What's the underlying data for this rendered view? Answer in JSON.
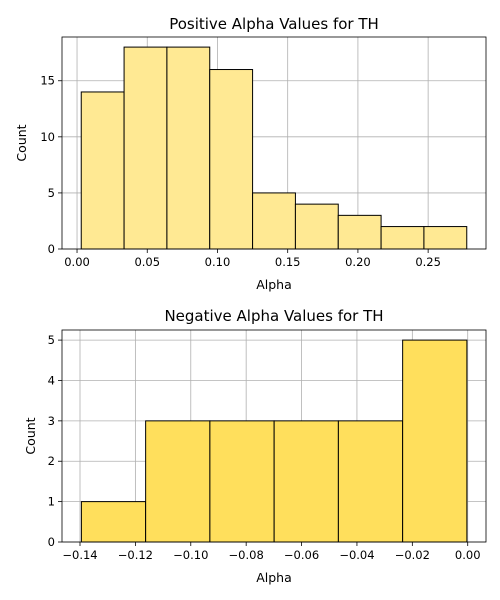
{
  "chart_data": [
    {
      "type": "bar",
      "title": "Positive Alpha Values for TH",
      "xlabel": "Alpha",
      "ylabel": "Count",
      "bins": [
        {
          "x0": 0.003,
          "x1": 0.0335,
          "count": 14
        },
        {
          "x0": 0.0335,
          "x1": 0.064,
          "count": 18
        },
        {
          "x0": 0.064,
          "x1": 0.0945,
          "count": 18
        },
        {
          "x0": 0.0945,
          "x1": 0.125,
          "count": 16
        },
        {
          "x0": 0.125,
          "x1": 0.1555,
          "count": 5
        },
        {
          "x0": 0.1555,
          "x1": 0.186,
          "count": 4
        },
        {
          "x0": 0.186,
          "x1": 0.2165,
          "count": 3
        },
        {
          "x0": 0.2165,
          "x1": 0.247,
          "count": 2
        },
        {
          "x0": 0.247,
          "x1": 0.2775,
          "count": 2
        }
      ],
      "xlim": [
        -0.0107,
        0.2912
      ],
      "ylim": [
        0,
        18.9
      ],
      "xticks": [
        {
          "value": 0.0,
          "label": "0.00"
        },
        {
          "value": 0.05,
          "label": "0.05"
        },
        {
          "value": 0.1,
          "label": "0.10"
        },
        {
          "value": 0.15,
          "label": "0.15"
        },
        {
          "value": 0.2,
          "label": "0.20"
        },
        {
          "value": 0.25,
          "label": "0.25"
        }
      ],
      "yticks": [
        {
          "value": 0,
          "label": "0"
        },
        {
          "value": 5,
          "label": "5"
        },
        {
          "value": 10,
          "label": "10"
        },
        {
          "value": 15,
          "label": "15"
        }
      ],
      "bar_color": "#ffe993",
      "edge_color": "#000000",
      "grid": true
    },
    {
      "type": "bar",
      "title": "Negative Alpha Values for TH",
      "xlabel": "Alpha",
      "ylabel": "Count",
      "bins": [
        {
          "x0": -0.1395,
          "x1": -0.1163,
          "count": 1
        },
        {
          "x0": -0.1163,
          "x1": -0.0931,
          "count": 3
        },
        {
          "x0": -0.0931,
          "x1": -0.0699,
          "count": 3
        },
        {
          "x0": -0.0699,
          "x1": -0.0467,
          "count": 3
        },
        {
          "x0": -0.0467,
          "x1": -0.0235,
          "count": 3
        },
        {
          "x0": -0.0235,
          "x1": -0.0003,
          "count": 5
        }
      ],
      "xlim": [
        -0.1465,
        0.0066
      ],
      "ylim": [
        0,
        5.25
      ],
      "xticks": [
        {
          "value": -0.14,
          "label": "−0.14"
        },
        {
          "value": -0.12,
          "label": "−0.12"
        },
        {
          "value": -0.1,
          "label": "−0.10"
        },
        {
          "value": -0.08,
          "label": "−0.08"
        },
        {
          "value": -0.06,
          "label": "−0.06"
        },
        {
          "value": -0.04,
          "label": "−0.04"
        },
        {
          "value": -0.02,
          "label": "−0.02"
        },
        {
          "value": 0.0,
          "label": "0.00"
        }
      ],
      "yticks": [
        {
          "value": 0,
          "label": "0"
        },
        {
          "value": 1,
          "label": "1"
        },
        {
          "value": 2,
          "label": "2"
        },
        {
          "value": 3,
          "label": "3"
        },
        {
          "value": 4,
          "label": "4"
        },
        {
          "value": 5,
          "label": "5"
        }
      ],
      "bar_color": "#ffdf5c",
      "edge_color": "#000000",
      "grid": true
    }
  ]
}
